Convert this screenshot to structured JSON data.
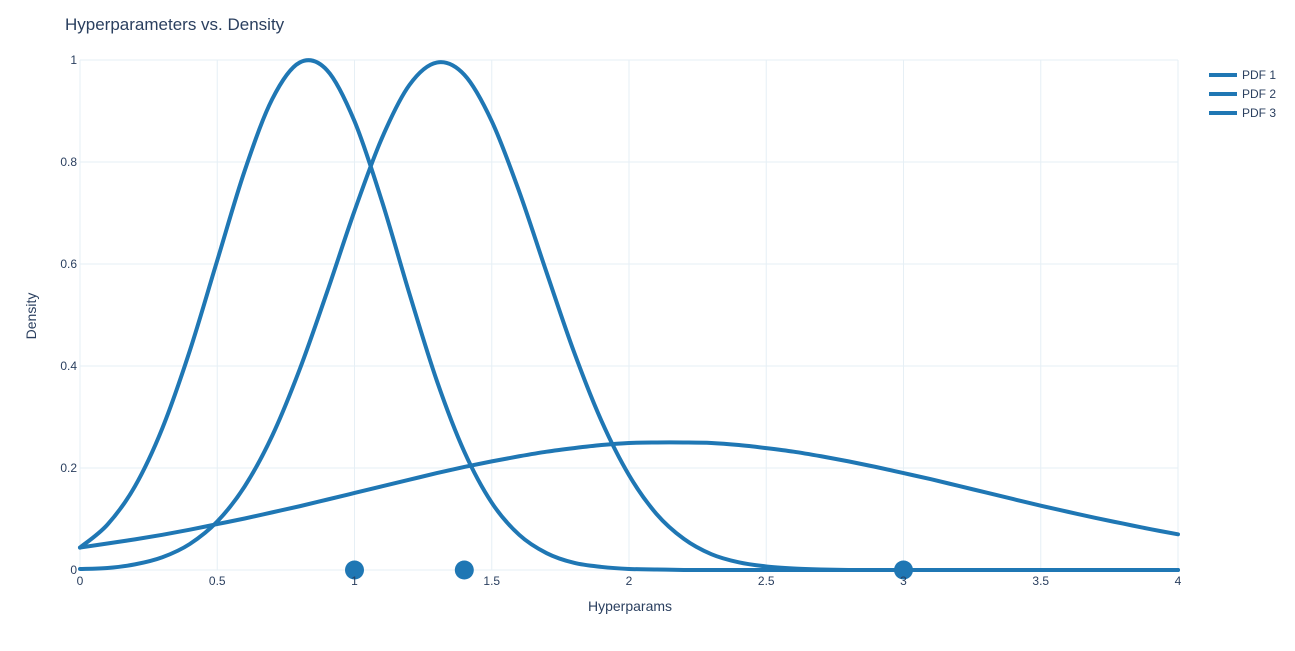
{
  "chart_data": {
    "type": "line",
    "title": "Hyperparameters vs. Density",
    "xlabel": "Hyperparams",
    "ylabel": "Density",
    "xlim": [
      0,
      4
    ],
    "ylim": [
      0,
      1
    ],
    "grid": true,
    "legend_position": "top-right",
    "x_ticks": [
      "0",
      "0.5",
      "1",
      "1.5",
      "2",
      "2.5",
      "3",
      "3.5",
      "4"
    ],
    "y_ticks": [
      "0",
      "0.2",
      "0.4",
      "0.6",
      "0.8",
      "1"
    ],
    "line_color": "#1f77b4",
    "x": [
      0,
      0.1,
      0.2,
      0.3,
      0.4,
      0.5,
      0.6,
      0.7,
      0.8,
      0.9,
      1.0,
      1.1,
      1.2,
      1.3,
      1.4,
      1.5,
      1.6,
      1.7,
      1.8,
      1.9,
      2.0,
      2.1,
      2.2,
      2.3,
      2.4,
      2.5,
      2.6,
      2.7,
      2.8,
      2.9,
      3.0,
      3.1,
      3.2,
      3.3,
      3.4,
      3.5,
      3.6,
      3.7,
      3.8,
      3.9,
      4.0
    ],
    "series": [
      {
        "name": "PDF 1",
        "values": [
          0.044,
          0.089,
          0.164,
          0.278,
          0.43,
          0.607,
          0.783,
          0.923,
          0.995,
          0.98,
          0.88,
          0.723,
          0.542,
          0.371,
          0.232,
          0.132,
          0.069,
          0.033,
          0.014,
          0.006,
          0.002,
          0.001,
          0,
          0,
          0,
          0,
          0,
          0,
          0,
          0,
          0,
          0,
          0,
          0,
          0,
          0,
          0,
          0,
          0,
          0,
          0
        ]
      },
      {
        "name": "PDF 2",
        "values": [
          0.002,
          0.004,
          0.011,
          0.025,
          0.051,
          0.095,
          0.164,
          0.263,
          0.393,
          0.545,
          0.704,
          0.847,
          0.951,
          0.995,
          0.971,
          0.88,
          0.742,
          0.583,
          0.427,
          0.292,
          0.186,
          0.11,
          0.061,
          0.031,
          0.015,
          0.007,
          0.003,
          0.001,
          0,
          0,
          0,
          0,
          0,
          0,
          0,
          0,
          0,
          0,
          0,
          0,
          0
        ]
      },
      {
        "name": "PDF 3",
        "values": [
          0.044,
          0.052,
          0.06,
          0.069,
          0.079,
          0.09,
          0.101,
          0.113,
          0.125,
          0.138,
          0.151,
          0.164,
          0.177,
          0.19,
          0.202,
          0.213,
          0.223,
          0.232,
          0.239,
          0.245,
          0.249,
          0.25,
          0.25,
          0.249,
          0.245,
          0.239,
          0.232,
          0.223,
          0.213,
          0.202,
          0.19,
          0.178,
          0.165,
          0.152,
          0.139,
          0.126,
          0.114,
          0.102,
          0.091,
          0.08,
          0.07
        ]
      }
    ],
    "markers": {
      "x": [
        1.0,
        1.4,
        3.0
      ],
      "y": [
        0,
        0,
        0
      ]
    }
  }
}
